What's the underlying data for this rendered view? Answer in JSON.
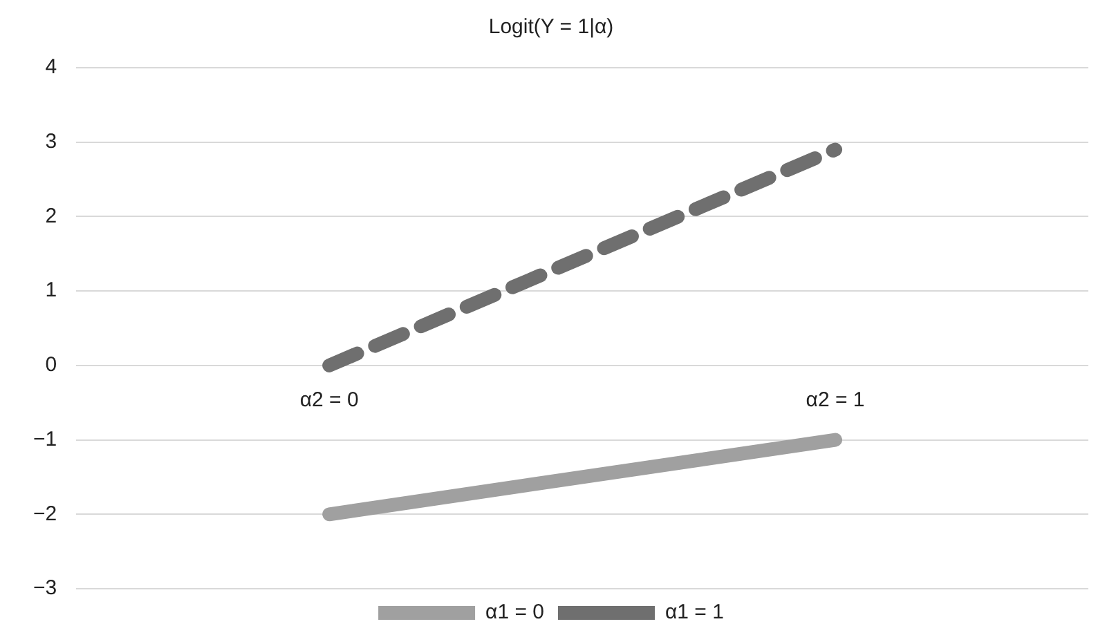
{
  "chart_data": {
    "type": "line",
    "title": "Logit(Y = 1|α)",
    "categories": [
      "α2 = 0",
      "α2 = 1"
    ],
    "series": [
      {
        "name": "α1 = 0",
        "color": "#a0a0a0",
        "values": [
          -2,
          -1
        ],
        "line_style": "solid"
      },
      {
        "name": "α1 = 1",
        "color": "#6f6f6f",
        "values": [
          0,
          2.9
        ],
        "line_style": "dashed"
      }
    ],
    "ylim": [
      -3,
      4
    ],
    "yticks": [
      {
        "value": -3,
        "label": "−3"
      },
      {
        "value": -2,
        "label": "−2"
      },
      {
        "value": -1,
        "label": "−1"
      },
      0,
      1,
      2,
      3,
      4
    ],
    "grid": "y",
    "legend": "bottom",
    "marker": "none"
  }
}
